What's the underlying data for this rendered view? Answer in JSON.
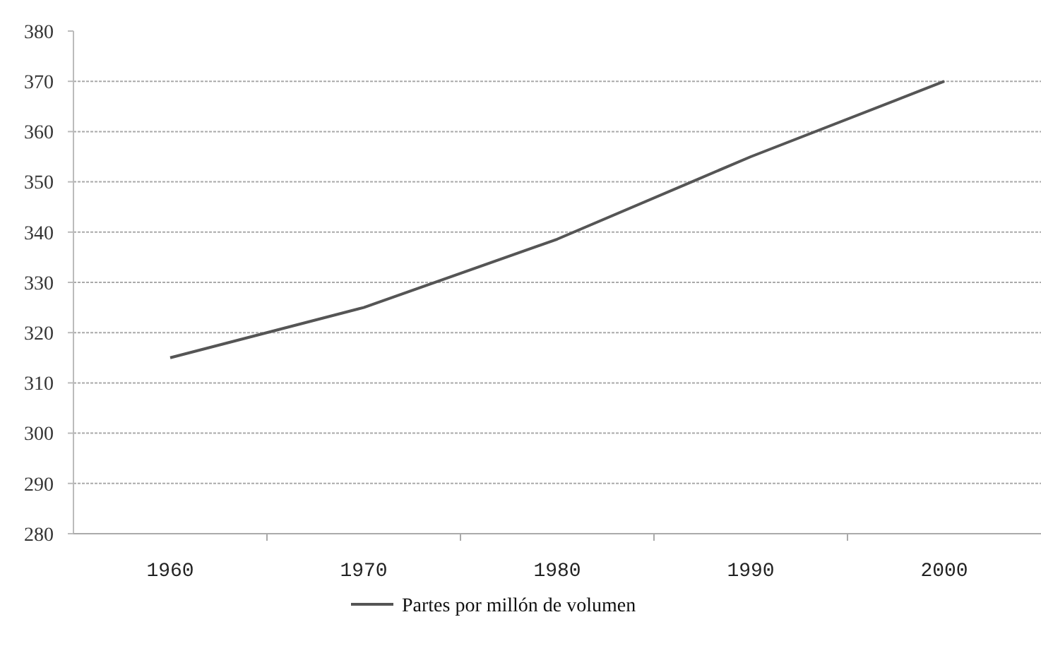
{
  "chart_data": {
    "type": "line",
    "categories": [
      "1960",
      "1970",
      "1980",
      "1990",
      "2000"
    ],
    "series": [
      {
        "name": "Partes por millón de volumen",
        "color": "#555555",
        "values": [
          315,
          325,
          338.6,
          355,
          370
        ]
      }
    ],
    "ylim": [
      280,
      380
    ],
    "yticks": [
      280,
      290,
      300,
      310,
      320,
      330,
      340,
      350,
      360,
      370,
      380
    ],
    "grid": "y",
    "legend": "bottom",
    "marker": "none",
    "line_style": "solid"
  }
}
